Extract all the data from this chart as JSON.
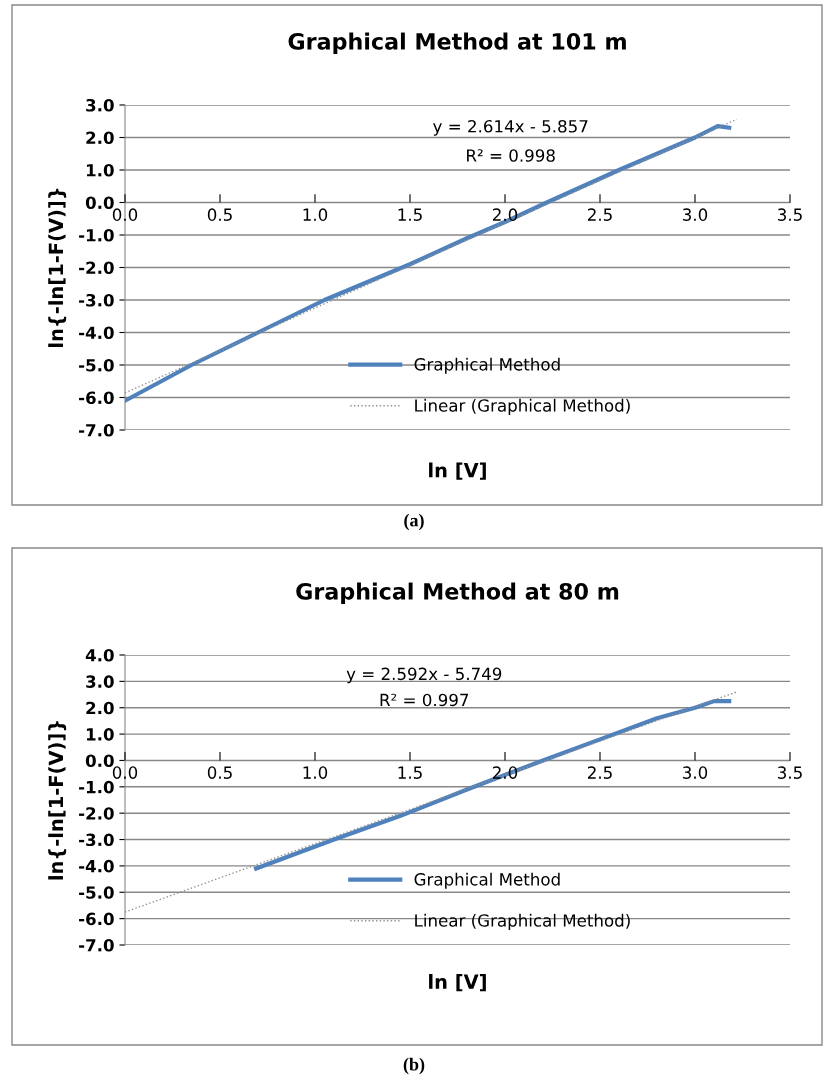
{
  "chart_data": [
    {
      "type": "line",
      "title": "Graphical Method at 101 m",
      "xlabel": "ln [V]",
      "ylabel": "ln{-ln[1-F(V)]}",
      "xlim": [
        0,
        3.5
      ],
      "xticks": [
        {
          "value": 0,
          "label": "0.0"
        },
        {
          "value": 0.5,
          "label": "0.5"
        },
        {
          "value": 1,
          "label": "1.0"
        },
        {
          "value": 1.5,
          "label": "1.5"
        },
        {
          "value": 2,
          "label": "2.0"
        },
        {
          "value": 2.5,
          "label": "2.5"
        },
        {
          "value": 3,
          "label": "3.0"
        },
        {
          "value": 3.5,
          "label": "3.5"
        }
      ],
      "ylim": [
        -7,
        3
      ],
      "yticks": [
        {
          "value": -7,
          "label": "-7.0"
        },
        {
          "value": -6,
          "label": "-6.0"
        },
        {
          "value": -5,
          "label": "-5.0"
        },
        {
          "value": -4,
          "label": "-4.0"
        },
        {
          "value": -3,
          "label": "-3.0"
        },
        {
          "value": -2,
          "label": "-2.0"
        },
        {
          "value": -1,
          "label": "-1.0"
        },
        {
          "value": 0,
          "label": "0.0"
        },
        {
          "value": 1,
          "label": "1.0"
        },
        {
          "value": 2,
          "label": "2.0"
        },
        {
          "value": 3,
          "label": "3.0"
        }
      ],
      "grid": "y",
      "legend": "bottom",
      "series": [
        {
          "name": "Graphical Method",
          "color": "#4f81bd",
          "x": [
            0,
            0.35,
            0.7,
            1.05,
            1.5,
            1.8,
            2.0,
            2.22,
            2.6,
            3.0,
            3.12,
            3.18
          ],
          "values": [
            -6.1,
            -5.0,
            -4.0,
            -3.0,
            -1.9,
            -1.1,
            -0.6,
            0.0,
            1.0,
            2.0,
            2.35,
            2.3
          ]
        },
        {
          "name": "Linear (Graphical Method)",
          "type": "line",
          "line_style": "dotted",
          "color": "#909090",
          "x": [
            0,
            3.22
          ],
          "values": [
            -5.86,
            2.56
          ]
        }
      ],
      "annotations": [
        "y = 2.614x - 5.857",
        "R² = 0.998",
        "(a)"
      ]
    },
    {
      "type": "line",
      "title": "Graphical Method at 80 m",
      "xlabel": "ln [V]",
      "ylabel": "ln{-ln[1-F(V)]}",
      "xlim": [
        0,
        3.5
      ],
      "xticks": [
        {
          "value": 0,
          "label": "0.0"
        },
        {
          "value": 0.5,
          "label": "0.5"
        },
        {
          "value": 1,
          "label": "1.0"
        },
        {
          "value": 1.5,
          "label": "1.5"
        },
        {
          "value": 2,
          "label": "2.0"
        },
        {
          "value": 2.5,
          "label": "2.5"
        },
        {
          "value": 3,
          "label": "3.0"
        },
        {
          "value": 3.5,
          "label": "3.5"
        }
      ],
      "ylim": [
        -7,
        4
      ],
      "yticks": [
        {
          "value": -7,
          "label": "-7.0"
        },
        {
          "value": -6,
          "label": "-6.0"
        },
        {
          "value": -5,
          "label": "-5.0"
        },
        {
          "value": -4,
          "label": "-4.0"
        },
        {
          "value": -3,
          "label": "-3.0"
        },
        {
          "value": -2,
          "label": "-2.0"
        },
        {
          "value": -1,
          "label": "-1.0"
        },
        {
          "value": 0,
          "label": "0.0"
        },
        {
          "value": 1,
          "label": "1.0"
        },
        {
          "value": 2,
          "label": "2.0"
        },
        {
          "value": 3,
          "label": "3.0"
        },
        {
          "value": 4,
          "label": "4.0"
        }
      ],
      "grid": "y",
      "legend": "bottom",
      "series": [
        {
          "name": "Graphical Method",
          "color": "#4f81bd",
          "x": [
            0.69,
            1.1,
            1.45,
            1.8,
            2.2,
            2.5,
            2.8,
            3.0,
            3.1,
            3.18
          ],
          "values": [
            -4.1,
            -3.0,
            -2.1,
            -1.1,
            0.0,
            0.8,
            1.6,
            2.0,
            2.25,
            2.25
          ]
        },
        {
          "name": "Linear (Graphical Method)",
          "type": "line",
          "line_style": "dotted",
          "color": "#909090",
          "x": [
            0,
            3.22
          ],
          "values": [
            -5.75,
            2.6
          ]
        }
      ],
      "annotations": [
        "y = 2.592x - 5.749",
        "R² = 0.997",
        "(b)"
      ]
    }
  ]
}
